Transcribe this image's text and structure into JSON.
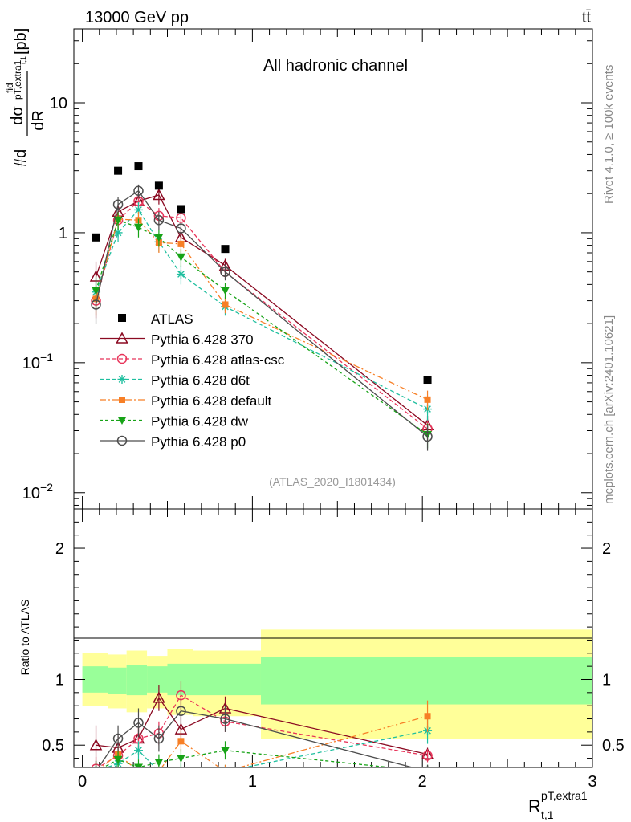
{
  "header": {
    "energy_label": "13000 GeV pp",
    "process_label": "tt̄",
    "channel_label": "All hadronic channel",
    "analysis_id": "(ATLAS_2020_I1801434)",
    "side_rivet": "Rivet 4.1.0, ≥ 100k events",
    "side_site": "mcplots.cern.ch [arXiv:2401.10621]"
  },
  "axes": {
    "main_ylabel_pre": "#d",
    "main_ylabel_sigma": "dσ",
    "main_ylabel_sup": "fid",
    "main_ylabel_sub": "pT,extra1",
    "main_ylabel_sub2": "t,1",
    "main_ylabel_den": "dR",
    "main_ylabel_unit": "[pb]",
    "ratio_ylabel": "Ratio to ATLAS",
    "xlabel_main": "R",
    "xlabel_sup": "pT,extra1",
    "xlabel_sub": "t,1",
    "main_yticks": [
      {
        "value": 0.01,
        "base": "10",
        "exp": "−2"
      },
      {
        "value": 0.1,
        "base": "10",
        "exp": "−1"
      },
      {
        "value": 1,
        "base": "1",
        "exp": ""
      },
      {
        "value": 10,
        "base": "10",
        "exp": ""
      }
    ],
    "ratio_yticks": [
      {
        "value": 0.5,
        "label": "0.5"
      },
      {
        "value": 1,
        "label": "1"
      },
      {
        "value": 2,
        "label": "2"
      }
    ],
    "xticks": [
      {
        "value": 0,
        "label": "0"
      },
      {
        "value": 1,
        "label": "1"
      },
      {
        "value": 2,
        "label": "2"
      },
      {
        "value": 3,
        "label": "3"
      }
    ]
  },
  "chart_data": {
    "type": "scatter",
    "x_range": [
      -0.05,
      3.0
    ],
    "main_y_range_log": [
      0.0075,
      37
    ],
    "ratio_y_range": [
      0.33,
      2.3
    ],
    "bins": [
      {
        "lo": 0.0,
        "hi": 0.15,
        "x": 0.08
      },
      {
        "lo": 0.15,
        "hi": 0.26,
        "x": 0.21
      },
      {
        "lo": 0.26,
        "hi": 0.38,
        "x": 0.33
      },
      {
        "lo": 0.38,
        "hi": 0.5,
        "x": 0.45
      },
      {
        "lo": 0.5,
        "hi": 0.65,
        "x": 0.58
      },
      {
        "lo": 0.65,
        "hi": 1.05,
        "x": 0.84
      },
      {
        "lo": 1.05,
        "hi": 3.0,
        "x": 2.03
      }
    ],
    "data": {
      "name": "ATLAS",
      "values": [
        0.92,
        3.0,
        3.25,
        2.3,
        1.52,
        0.75,
        0.074
      ],
      "ratio_band_inner": [
        [
          0.9,
          1.1
        ],
        [
          0.89,
          1.09
        ],
        [
          0.88,
          1.11
        ],
        [
          0.9,
          1.1
        ],
        [
          0.88,
          1.12
        ],
        [
          0.88,
          1.12
        ],
        [
          0.81,
          1.17
        ]
      ],
      "ratio_band_outer": [
        [
          0.8,
          1.2
        ],
        [
          0.78,
          1.19
        ],
        [
          0.75,
          1.22
        ],
        [
          0.78,
          1.18
        ],
        [
          0.73,
          1.23
        ],
        [
          0.72,
          1.22
        ],
        [
          0.55,
          1.38
        ]
      ]
    },
    "series": [
      {
        "name": "Pythia 6.428 370",
        "color": "#8b0a22",
        "dash": "",
        "marker": "triangle-open",
        "values": [
          0.46,
          1.45,
          1.75,
          1.95,
          0.92,
          0.56,
          0.033
        ],
        "errors": [
          0.14,
          0.22,
          0.25,
          0.3,
          0.15,
          0.07,
          0.006
        ],
        "ratio": [
          0.5,
          0.48,
          0.55,
          0.86,
          0.62,
          0.78,
          0.43
        ],
        "ratio_err": [
          0.15,
          0.09,
          0.08,
          0.1,
          0.1,
          0.09,
          0.05
        ]
      },
      {
        "name": "Pythia 6.428 atlas-csc",
        "color": "#e8345a",
        "dash": "5,3",
        "marker": "circle-open",
        "values": [
          0.3,
          1.25,
          1.75,
          1.35,
          1.3,
          0.5,
          0.031
        ],
        "errors": [
          0.08,
          0.2,
          0.25,
          0.2,
          0.18,
          0.06,
          0.006
        ],
        "ratio": [
          0.32,
          0.42,
          0.55,
          0.59,
          0.88,
          0.68,
          0.42
        ],
        "ratio_err": [
          0.09,
          0.07,
          0.08,
          0.09,
          0.11,
          0.08,
          0.05
        ]
      },
      {
        "name": "Pythia 6.428 d6t",
        "color": "#1fbf9f",
        "dash": "5,3",
        "marker": "star",
        "values": [
          0.35,
          1.0,
          1.5,
          0.85,
          0.48,
          0.27,
          0.044
        ],
        "errors": [
          0.1,
          0.15,
          0.22,
          0.14,
          0.08,
          0.04,
          0.008
        ],
        "ratio": [
          0.3,
          0.36,
          0.46,
          0.3,
          0.3,
          0.3,
          0.61
        ],
        "ratio_err": [
          0.08,
          0.06,
          0.07,
          0.06,
          0.06,
          0.05,
          0.1
        ]
      },
      {
        "name": "Pythia 6.428 default",
        "color": "#f77f26",
        "dash": "8,3,2,3",
        "marker": "square",
        "values": [
          0.31,
          1.27,
          1.25,
          0.84,
          0.82,
          0.28,
          0.052
        ],
        "errors": [
          0.08,
          0.18,
          0.2,
          0.14,
          0.12,
          0.04,
          0.009
        ],
        "ratio": [
          0.3,
          0.43,
          0.3,
          0.3,
          0.53,
          0.3,
          0.72
        ],
        "ratio_err": [
          0.08,
          0.07,
          0.06,
          0.06,
          0.08,
          0.05,
          0.12
        ]
      },
      {
        "name": "Pythia 6.428 dw",
        "color": "#17a317",
        "dash": "4,3",
        "marker": "triangle-down",
        "values": [
          0.36,
          1.25,
          1.1,
          0.92,
          0.65,
          0.36,
          0.028
        ],
        "errors": [
          0.1,
          0.2,
          0.18,
          0.14,
          0.1,
          0.05,
          0.006
        ],
        "ratio": [
          0.3,
          0.39,
          0.33,
          0.37,
          0.4,
          0.46,
          0.3
        ],
        "ratio_err": [
          0.08,
          0.07,
          0.06,
          0.06,
          0.07,
          0.07,
          0.05
        ]
      },
      {
        "name": "Pythia 6.428 p0",
        "color": "#4d4d4d",
        "dash": "",
        "marker": "circle-open",
        "values": [
          0.28,
          1.65,
          2.1,
          1.25,
          1.08,
          0.5,
          0.027
        ],
        "errors": [
          0.08,
          0.22,
          0.25,
          0.2,
          0.15,
          0.07,
          0.006
        ],
        "ratio": [
          0.3,
          0.55,
          0.67,
          0.55,
          0.76,
          0.7,
          0.3
        ],
        "ratio_err": [
          0.08,
          0.1,
          0.11,
          0.1,
          0.1,
          0.1,
          0.05
        ]
      }
    ]
  }
}
